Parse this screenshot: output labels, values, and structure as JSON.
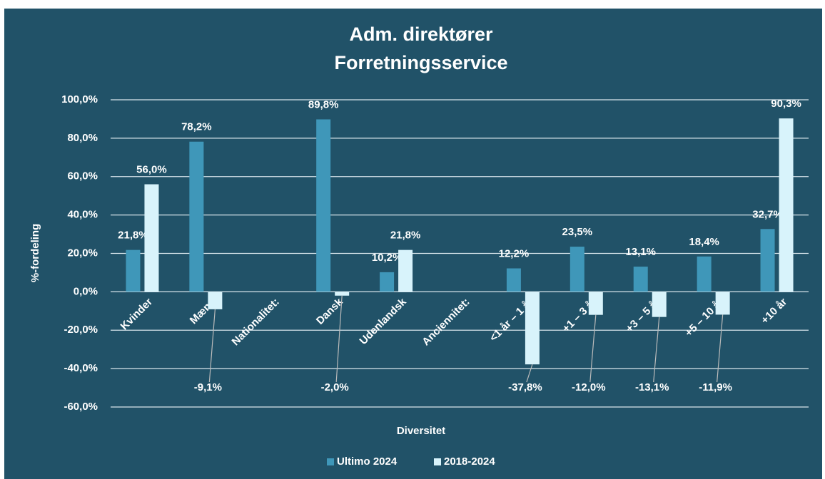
{
  "chart_data": {
    "type": "bar",
    "title": [
      "Adm. direktører",
      "Forretningsservice"
    ],
    "x_label": "Diversitet",
    "y_label": "%-fordeling",
    "categories": [
      "Kvinder",
      "Mænd",
      "Nationalitet:",
      "Dansk",
      "Udenlandsk",
      "Anciennitet:",
      "<1 år – 1 år",
      "+1 – 3 år",
      "+3 – 5 år",
      "+5 – 10 år",
      "+10 år"
    ],
    "series": [
      {
        "name": "Ultimo 2024",
        "color": "#3f97b9",
        "values": [
          21.8,
          78.2,
          null,
          89.8,
          10.2,
          null,
          12.2,
          23.5,
          13.1,
          18.4,
          32.7
        ],
        "value_labels": [
          "21,8%",
          "78,2%",
          null,
          "89,8%",
          "10,2%",
          null,
          "12,2%",
          "23,5%",
          "13,1%",
          "18,4%",
          "32,7%"
        ]
      },
      {
        "name": "2018-2024",
        "color": "#d8f3fb",
        "values": [
          56.0,
          -9.1,
          null,
          -2.0,
          21.8,
          null,
          -37.8,
          -12.0,
          -13.1,
          -11.9,
          90.3
        ],
        "value_labels": [
          "56,0%",
          "-9,1%",
          null,
          "-2,0%",
          "21,8%",
          null,
          "-37,8%",
          "-12,0%",
          "-13,1%",
          "-11,9%",
          "90,3%"
        ]
      }
    ],
    "ylim": [
      -60,
      100
    ],
    "yticks": [
      {
        "value": -60,
        "label": "-60,0%"
      },
      {
        "value": -40,
        "label": "-40,0%"
      },
      {
        "value": -20,
        "label": "-20,0%"
      },
      {
        "value": 0,
        "label": "0,0%"
      },
      {
        "value": 20,
        "label": "20,0%"
      },
      {
        "value": 40,
        "label": "40,0%"
      },
      {
        "value": 60,
        "label": "60,0%"
      },
      {
        "value": 80,
        "label": "80,0%"
      },
      {
        "value": 100,
        "label": "100,0%"
      }
    ],
    "grid": true,
    "legend": "bottom"
  }
}
